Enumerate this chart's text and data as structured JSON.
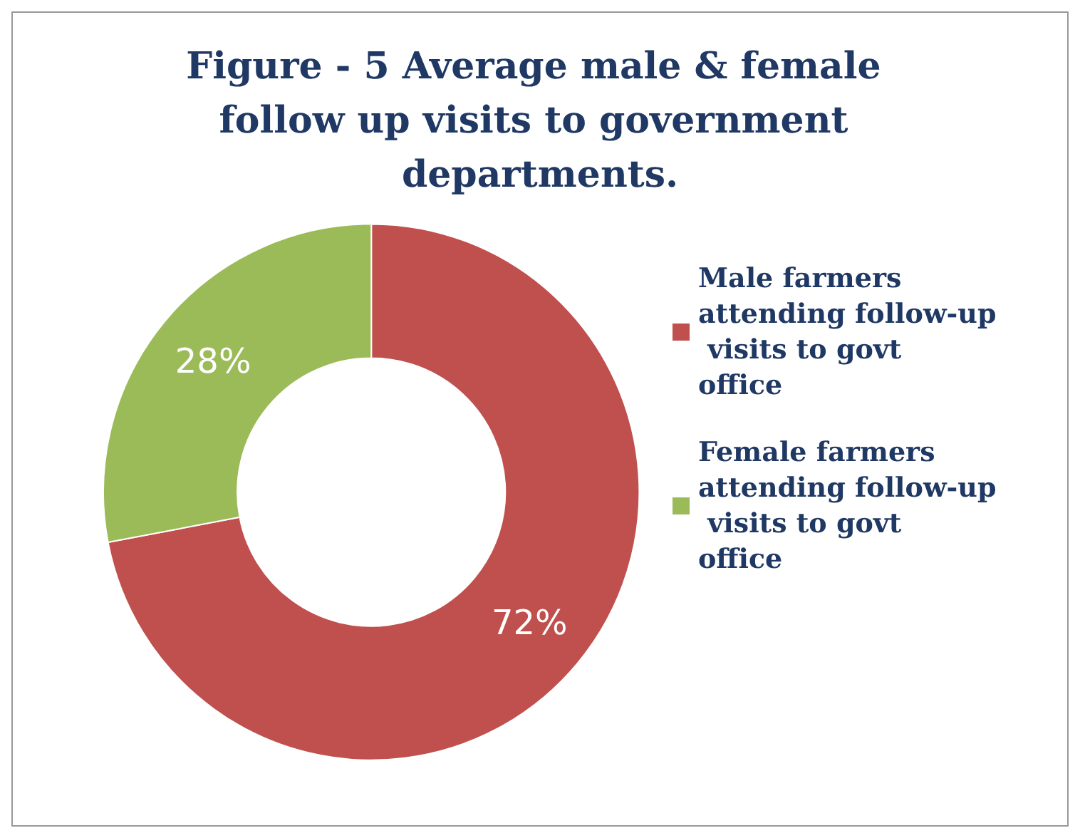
{
  "chart_data": {
    "type": "donut",
    "title": "Figure - 5 Average male & female follow up visits to government departments.",
    "categories": [
      "Male farmers attending follow-up visits to govt office",
      "Female farmers attending follow-up visits to govt office"
    ],
    "values": [
      72,
      28
    ],
    "colors": [
      "#c0504d",
      "#9bbb59"
    ],
    "value_labels": [
      "72%",
      "28%"
    ],
    "legend": "right"
  }
}
